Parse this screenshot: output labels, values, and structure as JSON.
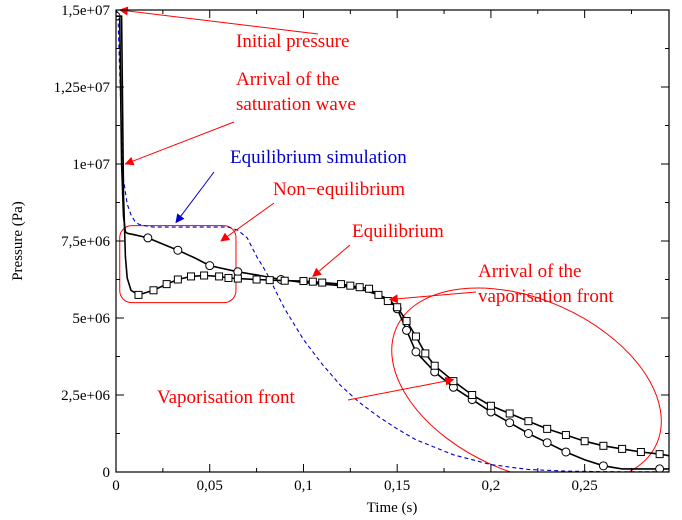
{
  "chart_data": {
    "type": "line",
    "xlabel": "Time (s)",
    "ylabel": "Pressure (Pa)",
    "xlim": [
      0,
      0.295
    ],
    "ylim": [
      0,
      15000000
    ],
    "xticks": [
      {
        "value": 0,
        "label": "0"
      },
      {
        "value": 0.05,
        "label": "0,05"
      },
      {
        "value": 0.1,
        "label": "0,1"
      },
      {
        "value": 0.15,
        "label": "0,15"
      },
      {
        "value": 0.2,
        "label": "0,2"
      },
      {
        "value": 0.25,
        "label": "0,25"
      }
    ],
    "yticks": [
      {
        "value": 0,
        "label": "0"
      },
      {
        "value": 2500000,
        "label": "2,5e+06"
      },
      {
        "value": 5000000,
        "label": "5e+06"
      },
      {
        "value": 7500000,
        "label": "7,5e+06"
      },
      {
        "value": 10000000,
        "label": "1e+07"
      },
      {
        "value": 12500000,
        "label": "1,25e+07"
      },
      {
        "value": 15000000,
        "label": "1,5e+07"
      }
    ],
    "grid": false,
    "series": [
      {
        "key": "equilibrium-simulation",
        "style": "dashed",
        "color": "#0000cc",
        "marker": "none",
        "x": [
          0,
          0.001,
          0.002,
          0.003,
          0.004,
          0.006,
          0.008,
          0.01,
          0.012,
          0.015,
          0.02,
          0.03,
          0.04,
          0.05,
          0.06,
          0.065,
          0.07,
          0.075,
          0.08,
          0.09,
          0.1,
          0.11,
          0.12,
          0.13,
          0.14,
          0.15,
          0.16,
          0.18,
          0.2,
          0.22,
          0.24,
          0.26,
          0.28,
          0.295
        ],
        "y": [
          15000000,
          14900000,
          13000000,
          11000000,
          9500000,
          8700000,
          8350000,
          8150000,
          8050000,
          8000000,
          7950000,
          7950000,
          7950000,
          7950000,
          7950000,
          7850000,
          7600000,
          7000000,
          6500000,
          5300000,
          4300000,
          3500000,
          2800000,
          2250000,
          1800000,
          1400000,
          1050000,
          560000,
          240000,
          80000,
          30000,
          10000,
          5000,
          2000
        ]
      },
      {
        "key": "equilibrium",
        "style": "solid",
        "color": "#000000",
        "marker": "circle",
        "x": [
          0,
          0.002,
          0.003,
          0.004,
          0.005,
          0.006,
          0.01,
          0.017,
          0.025,
          0.033,
          0.042,
          0.05,
          0.065,
          0.075,
          0.088,
          0.1,
          0.11,
          0.12,
          0.13,
          0.14,
          0.146,
          0.15,
          0.155,
          0.16,
          0.17,
          0.18,
          0.19,
          0.2,
          0.21,
          0.22,
          0.23,
          0.24,
          0.25,
          0.26,
          0.27,
          0.28,
          0.29,
          0.295
        ],
        "y": [
          14800000,
          14800000,
          10000000,
          8300000,
          7800000,
          7750000,
          7700000,
          7600000,
          7400000,
          7200000,
          6950000,
          6700000,
          6500000,
          6400000,
          6250000,
          6150000,
          6100000,
          6050000,
          5950000,
          5750000,
          5600000,
          5300000,
          4600000,
          3900000,
          3250000,
          2750000,
          2350000,
          1950000,
          1600000,
          1250000,
          950000,
          650000,
          400000,
          200000,
          100000,
          100000,
          100000,
          100000
        ],
        "markers": [
          0,
          0.017,
          0.033,
          0.05,
          0.065,
          0.088,
          0.15,
          0.155,
          0.16,
          0.17,
          0.18,
          0.19,
          0.2,
          0.21,
          0.22,
          0.23,
          0.24,
          0.26,
          0.29
        ]
      },
      {
        "key": "non-equilibrium",
        "style": "solid",
        "color": "#000000",
        "marker": "square",
        "x": [
          0,
          0.003,
          0.004,
          0.005,
          0.006,
          0.008,
          0.012,
          0.02,
          0.027,
          0.033,
          0.04,
          0.047,
          0.055,
          0.06,
          0.065,
          0.075,
          0.082,
          0.09,
          0.1,
          0.105,
          0.11,
          0.12,
          0.125,
          0.13,
          0.135,
          0.14,
          0.145,
          0.15,
          0.155,
          0.16,
          0.165,
          0.17,
          0.18,
          0.19,
          0.2,
          0.21,
          0.22,
          0.23,
          0.24,
          0.25,
          0.26,
          0.27,
          0.28,
          0.29,
          0.295
        ],
        "y": [
          14800000,
          14800000,
          9000000,
          7000000,
          6300000,
          5900000,
          5750000,
          5900000,
          6100000,
          6250000,
          6350000,
          6380000,
          6350000,
          6300000,
          6280000,
          6250000,
          6230000,
          6210000,
          6200000,
          6180000,
          6150000,
          6100000,
          6050000,
          6000000,
          5950000,
          5750000,
          5550000,
          5350000,
          4900000,
          4400000,
          3850000,
          3450000,
          2950000,
          2500000,
          2150000,
          1900000,
          1650000,
          1400000,
          1200000,
          1000000,
          850000,
          750000,
          650000,
          580000,
          530000
        ],
        "markers": [
          0.012,
          0.02,
          0.027,
          0.033,
          0.04,
          0.047,
          0.055,
          0.06,
          0.065,
          0.075,
          0.082,
          0.09,
          0.1,
          0.105,
          0.11,
          0.12,
          0.125,
          0.13,
          0.135,
          0.14,
          0.145,
          0.15,
          0.155,
          0.16,
          0.165,
          0.17,
          0.18,
          0.19,
          0.2,
          0.21,
          0.22,
          0.23,
          0.24,
          0.25,
          0.26,
          0.27,
          0.28,
          0.29
        ]
      }
    ],
    "annotations": [
      {
        "key": "initial-pressure",
        "text": "Initial pressure",
        "color": "#ff0000",
        "target": [
          0.002,
          15000000
        ]
      },
      {
        "key": "saturation-wave",
        "lines": [
          "Arrival of the",
          "saturation wave"
        ],
        "color": "#ff0000",
        "target": [
          0.005,
          10000000
        ]
      },
      {
        "key": "equilibrium-simulation",
        "text": "Equilibrium simulation",
        "color": "#0000cc",
        "target": [
          0.032,
          8100000
        ]
      },
      {
        "key": "non-equilibrium",
        "text": "Non−equilibrium",
        "color": "#ff0000",
        "target": [
          0.056,
          7500000
        ]
      },
      {
        "key": "equilibrium",
        "text": "Equilibrium",
        "color": "#ff0000",
        "target": [
          0.105,
          6350000
        ]
      },
      {
        "key": "vaporisation-front-arrival",
        "lines": [
          "Arrival of the",
          "vaporisation front"
        ],
        "color": "#ff0000",
        "target": [
          0.146,
          5600000
        ]
      },
      {
        "key": "vaporisation-front",
        "text": "Vaporisation front",
        "color": "#ff0000",
        "target": [
          0.18,
          3000000
        ]
      }
    ],
    "highlight_regions": [
      {
        "key": "non-equilibrium-box",
        "shape": "rounded-rect",
        "color": "#ff0000",
        "x": [
          0.002,
          0.064
        ],
        "y": [
          5500000,
          8000000
        ]
      },
      {
        "key": "vaporisation-front-ellipse",
        "shape": "ellipse",
        "color": "#ff0000",
        "x": [
          0.143,
          0.295
        ],
        "y": [
          0,
          5600000
        ]
      }
    ]
  }
}
